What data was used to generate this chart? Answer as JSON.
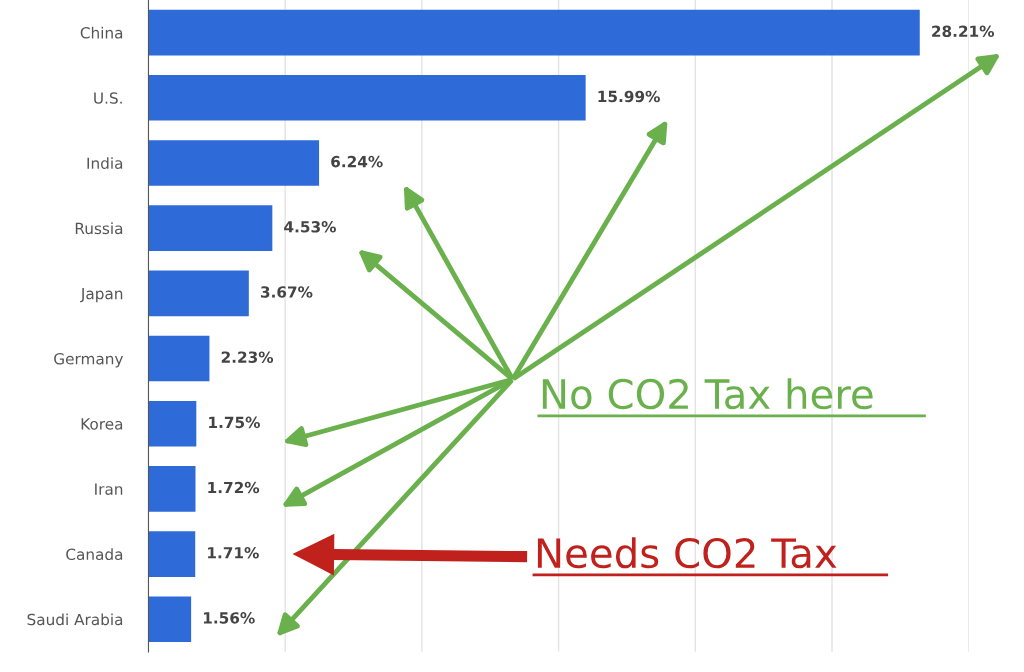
{
  "chart_data": {
    "type": "bar",
    "orientation": "horizontal",
    "categories": [
      "China",
      "U.S.",
      "India",
      "Russia",
      "Japan",
      "Germany",
      "Korea",
      "Iran",
      "Canada",
      "Saudi Arabia"
    ],
    "values": [
      28.21,
      15.99,
      6.24,
      4.53,
      3.67,
      2.23,
      1.75,
      1.72,
      1.71,
      1.56
    ],
    "value_labels": [
      "28.21%",
      "15.99%",
      "6.24%",
      "4.53%",
      "3.67%",
      "2.23%",
      "1.75%",
      "1.72%",
      "1.71%",
      "1.56%"
    ],
    "color": "#2f6ad9",
    "xlim": [
      0,
      30
    ],
    "xticks": [
      {
        "value": 5,
        "label": null
      },
      {
        "value": 10,
        "label": null
      },
      {
        "value": 15,
        "label": null
      },
      {
        "value": 20,
        "label": null
      },
      {
        "value": 25,
        "label": null
      },
      {
        "value": 30,
        "label": null
      }
    ],
    "tick_labels": "y",
    "grid": "x",
    "annotations": [
      "No CO2 Tax here",
      "Needs CO2 Tax"
    ]
  }
}
